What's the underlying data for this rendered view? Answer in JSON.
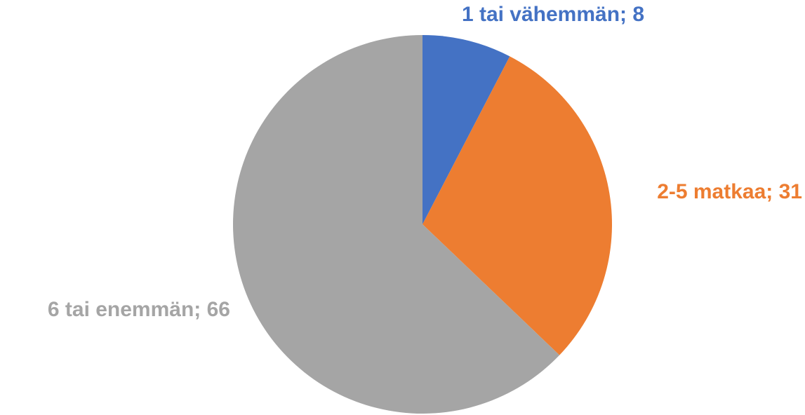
{
  "chart_data": {
    "type": "pie",
    "categories": [
      "1 tai vähemmän",
      "2-5 matkaa",
      "6 tai enemmän"
    ],
    "values": [
      8,
      31,
      66
    ],
    "colors": [
      "#4472c4",
      "#ed7d31",
      "#a5a5a5"
    ]
  }
}
